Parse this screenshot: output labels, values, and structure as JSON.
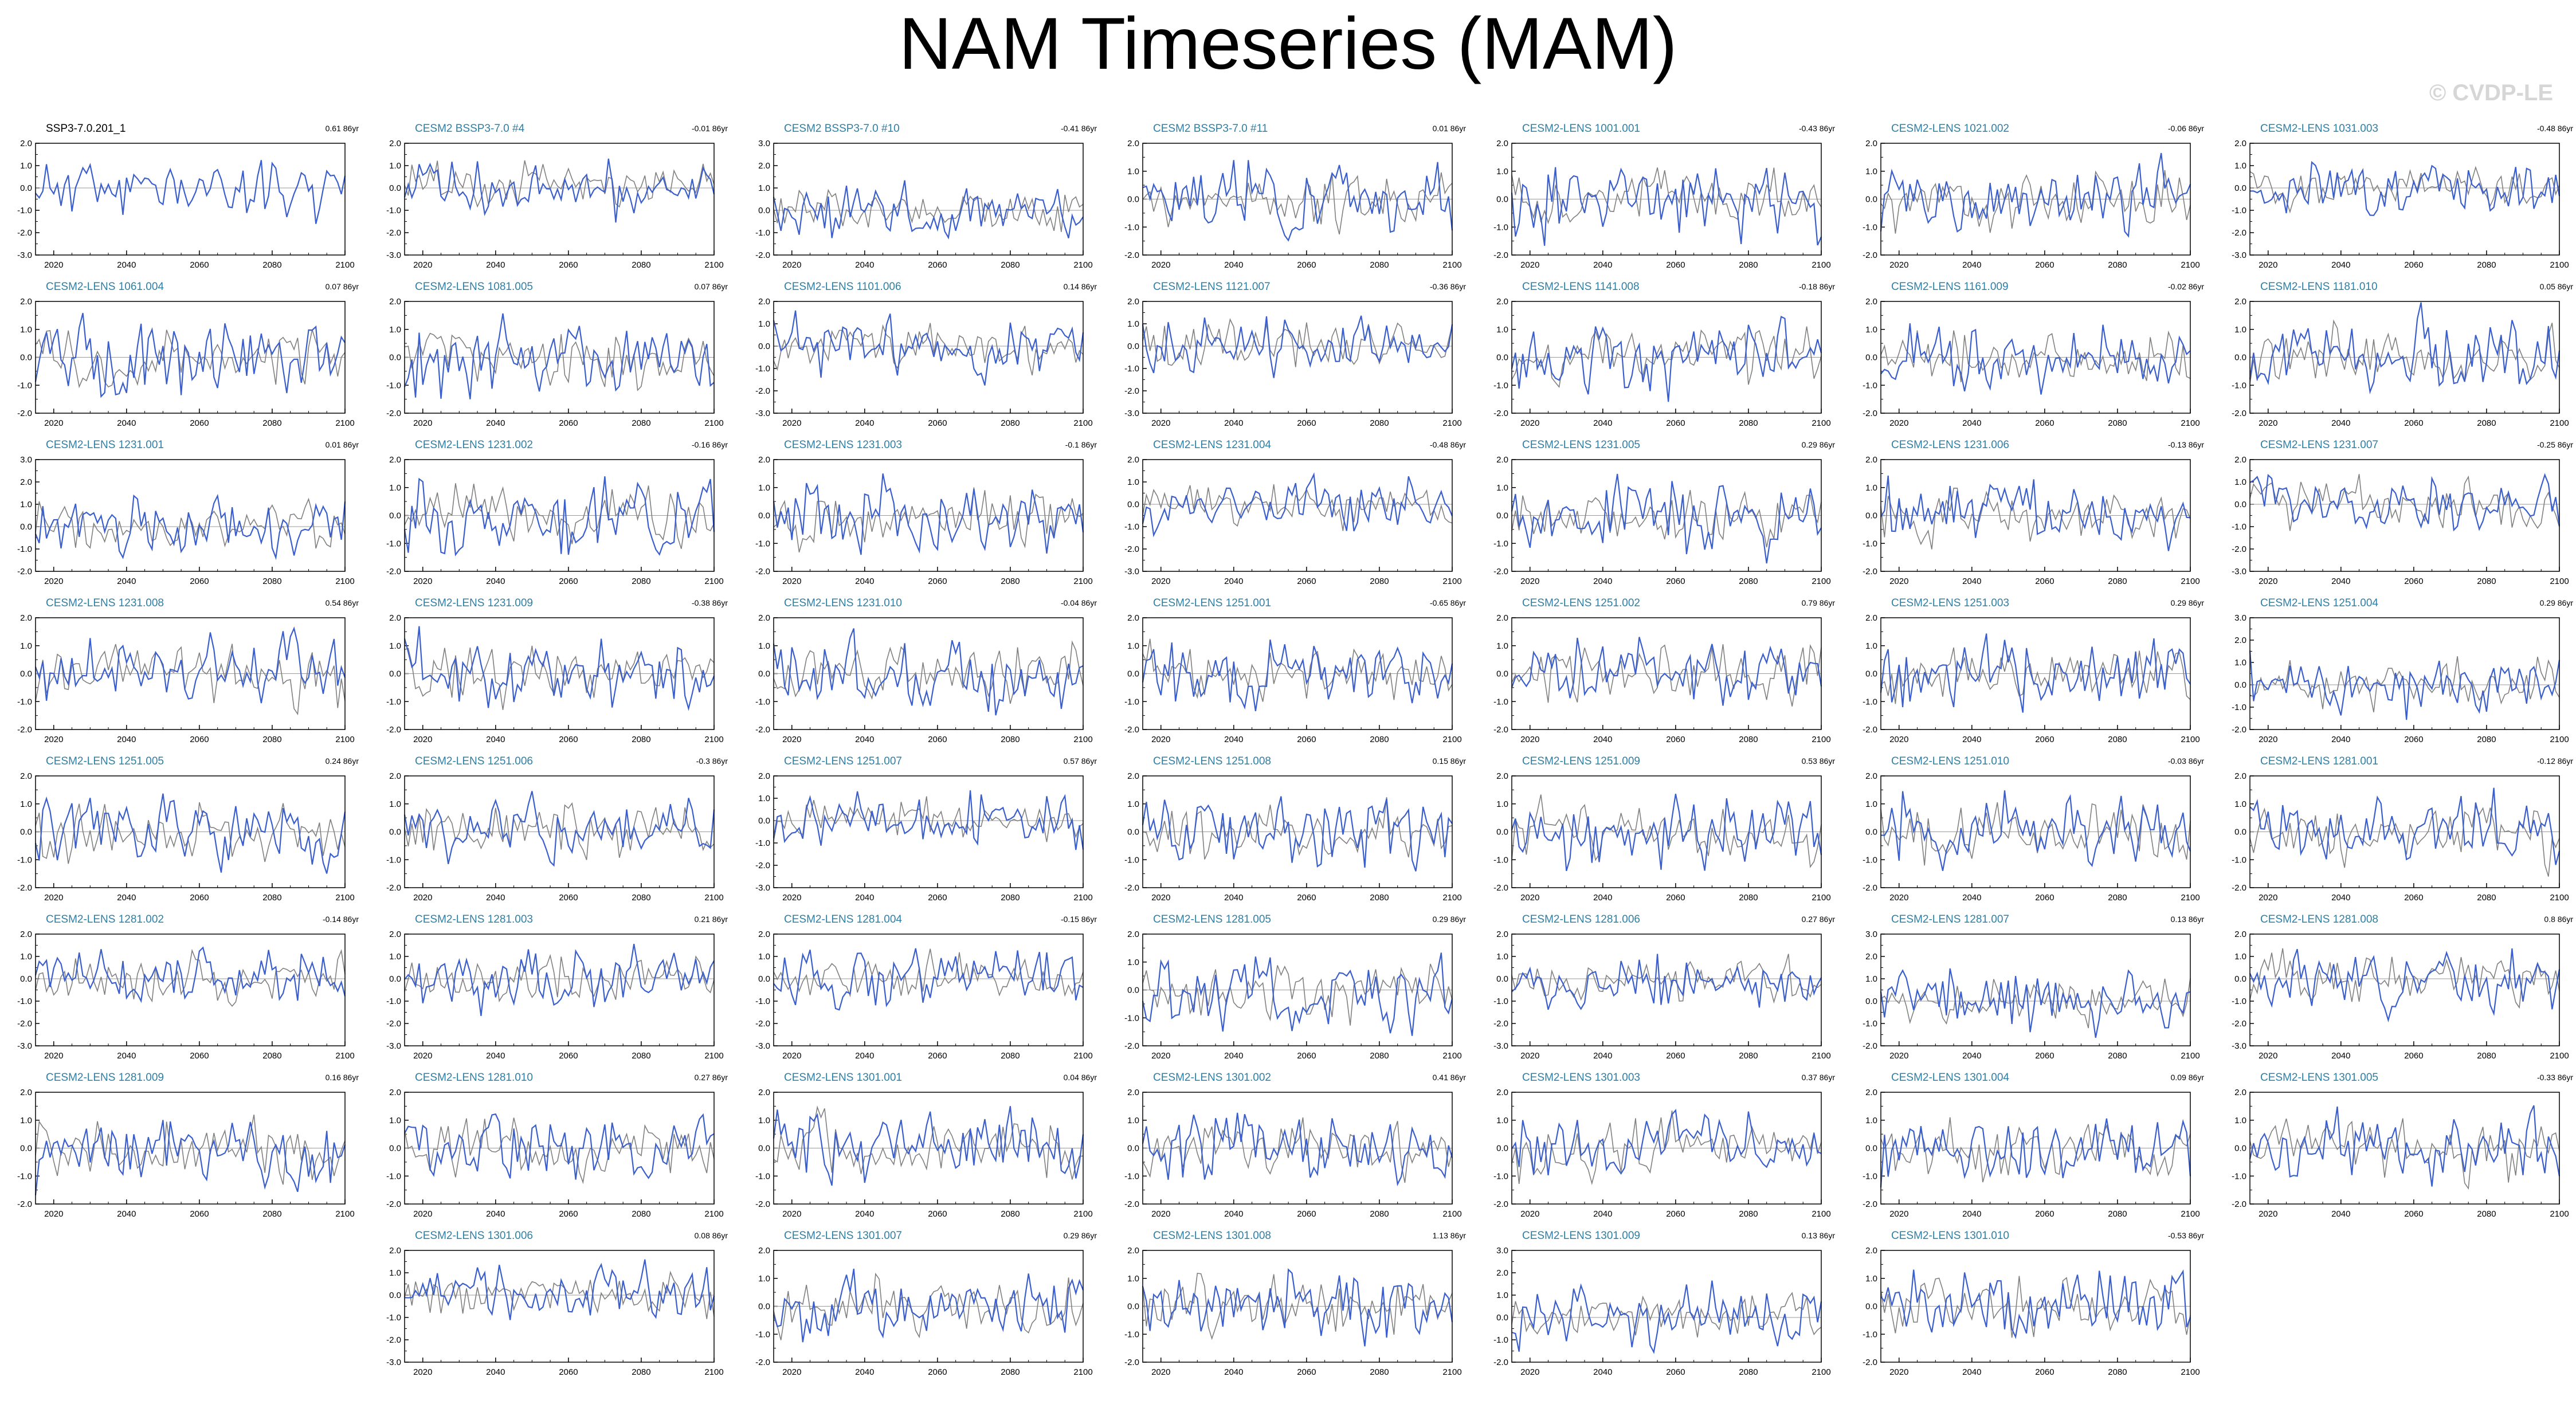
{
  "title": "NAM Timeseries (MAM)",
  "watermark": "© CVDP-LE",
  "colors": {
    "model": "#3a5fcd",
    "observed": "#808080",
    "zero_line": "#999999",
    "title_text": "#2e7fa5"
  },
  "x_ticks": [
    "2020",
    "2040",
    "2060",
    "2080",
    "2100"
  ],
  "chart_data": {
    "type": "line",
    "xlim": [
      2015,
      2100
    ],
    "panels": [
      {
        "name": "SSP3-7.0.201_1",
        "trend": "0.61 86yr",
        "ylim": [
          -3,
          2
        ],
        "yticks": [
          "2.0",
          "1.0",
          "0.0",
          "-1.0",
          "-2.0",
          "-3.0"
        ],
        "seed": 11,
        "base": true
      },
      {
        "name": "CESM2 BSSP3-7.0 #4",
        "trend": "-0.01 86yr",
        "ylim": [
          -3,
          2
        ],
        "yticks": [
          "2.0",
          "1.0",
          "0.0",
          "-1.0",
          "-2.0",
          "-3.0"
        ],
        "seed": 12
      },
      {
        "name": "CESM2 BSSP3-7.0 #10",
        "trend": "-0.41 86yr",
        "ylim": [
          -2,
          3
        ],
        "yticks": [
          "3.0",
          "2.0",
          "1.0",
          "0.0",
          "-1.0",
          "-2.0"
        ],
        "seed": 13
      },
      {
        "name": "CESM2 BSSP3-7.0 #11",
        "trend": "0.01 86yr",
        "ylim": [
          -2,
          2
        ],
        "yticks": [
          "2.0",
          "1.0",
          "0.0",
          "-1.0",
          "-2.0"
        ],
        "seed": 14
      },
      {
        "name": "CESM2-LENS 1001.001",
        "trend": "-0.43 86yr",
        "ylim": [
          -2,
          2
        ],
        "yticks": [
          "2.0",
          "1.0",
          "0.0",
          "-1.0",
          "-2.0"
        ],
        "seed": 15
      },
      {
        "name": "CESM2-LENS 1021.002",
        "trend": "-0.06 86yr",
        "ylim": [
          -2,
          2
        ],
        "yticks": [
          "2.0",
          "1.0",
          "0.0",
          "-1.0",
          "-2.0"
        ],
        "seed": 16
      },
      {
        "name": "CESM2-LENS 1031.003",
        "trend": "-0.48 86yr",
        "ylim": [
          -3,
          2
        ],
        "yticks": [
          "2.0",
          "1.0",
          "0.0",
          "-1.0",
          "-2.0",
          "-3.0"
        ],
        "seed": 17
      },
      {
        "name": "CESM2-LENS 1061.004",
        "trend": "0.07 86yr",
        "ylim": [
          -2,
          2
        ],
        "yticks": [
          "2.0",
          "1.0",
          "0.0",
          "-1.0",
          "-2.0"
        ],
        "seed": 21
      },
      {
        "name": "CESM2-LENS 1081.005",
        "trend": "0.07 86yr",
        "ylim": [
          -2,
          2
        ],
        "yticks": [
          "2.0",
          "1.0",
          "0.0",
          "-1.0",
          "-2.0"
        ],
        "seed": 22
      },
      {
        "name": "CESM2-LENS 1101.006",
        "trend": "0.14 86yr",
        "ylim": [
          -3,
          2
        ],
        "yticks": [
          "2.0",
          "1.0",
          "0.0",
          "-1.0",
          "-2.0",
          "-3.0"
        ],
        "seed": 23
      },
      {
        "name": "CESM2-LENS 1121.007",
        "trend": "-0.36 86yr",
        "ylim": [
          -3,
          2
        ],
        "yticks": [
          "2.0",
          "1.0",
          "0.0",
          "-1.0",
          "-2.0",
          "-3.0"
        ],
        "seed": 24
      },
      {
        "name": "CESM2-LENS 1141.008",
        "trend": "-0.18 86yr",
        "ylim": [
          -2,
          2
        ],
        "yticks": [
          "2.0",
          "1.0",
          "0.0",
          "-1.0",
          "-2.0"
        ],
        "seed": 25
      },
      {
        "name": "CESM2-LENS 1161.009",
        "trend": "-0.02 86yr",
        "ylim": [
          -2,
          2
        ],
        "yticks": [
          "2.0",
          "1.0",
          "0.0",
          "-1.0",
          "-2.0"
        ],
        "seed": 26
      },
      {
        "name": "CESM2-LENS 1181.010",
        "trend": "0.05 86yr",
        "ylim": [
          -2,
          2
        ],
        "yticks": [
          "2.0",
          "1.0",
          "0.0",
          "-1.0",
          "-2.0"
        ],
        "seed": 27
      },
      {
        "name": "CESM2-LENS 1231.001",
        "trend": "0.01 86yr",
        "ylim": [
          -2,
          3
        ],
        "yticks": [
          "3.0",
          "2.0",
          "1.0",
          "0.0",
          "-1.0",
          "-2.0"
        ],
        "seed": 31
      },
      {
        "name": "CESM2-LENS 1231.002",
        "trend": "-0.16 86yr",
        "ylim": [
          -2,
          2
        ],
        "yticks": [
          "2.0",
          "1.0",
          "0.0",
          "-1.0",
          "-2.0"
        ],
        "seed": 32
      },
      {
        "name": "CESM2-LENS 1231.003",
        "trend": "-0.1 86yr",
        "ylim": [
          -2,
          2
        ],
        "yticks": [
          "2.0",
          "1.0",
          "0.0",
          "-1.0",
          "-2.0"
        ],
        "seed": 33
      },
      {
        "name": "CESM2-LENS 1231.004",
        "trend": "-0.48 86yr",
        "ylim": [
          -3,
          2
        ],
        "yticks": [
          "2.0",
          "1.0",
          "0.0",
          "-1.0",
          "-2.0",
          "-3.0"
        ],
        "seed": 34
      },
      {
        "name": "CESM2-LENS 1231.005",
        "trend": "0.29 86yr",
        "ylim": [
          -2,
          2
        ],
        "yticks": [
          "2.0",
          "1.0",
          "0.0",
          "-1.0",
          "-2.0"
        ],
        "seed": 35
      },
      {
        "name": "CESM2-LENS 1231.006",
        "trend": "-0.13 86yr",
        "ylim": [
          -2,
          2
        ],
        "yticks": [
          "2.0",
          "1.0",
          "0.0",
          "-1.0",
          "-2.0"
        ],
        "seed": 36
      },
      {
        "name": "CESM2-LENS 1231.007",
        "trend": "-0.25 86yr",
        "ylim": [
          -3,
          2
        ],
        "yticks": [
          "2.0",
          "1.0",
          "0.0",
          "-1.0",
          "-2.0",
          "-3.0"
        ],
        "seed": 37
      },
      {
        "name": "CESM2-LENS 1231.008",
        "trend": "0.54 86yr",
        "ylim": [
          -2,
          2
        ],
        "yticks": [
          "2.0",
          "1.0",
          "0.0",
          "-1.0",
          "-2.0"
        ],
        "seed": 41
      },
      {
        "name": "CESM2-LENS 1231.009",
        "trend": "-0.38 86yr",
        "ylim": [
          -2,
          2
        ],
        "yticks": [
          "2.0",
          "1.0",
          "0.0",
          "-1.0",
          "-2.0"
        ],
        "seed": 42
      },
      {
        "name": "CESM2-LENS 1231.010",
        "trend": "-0.04 86yr",
        "ylim": [
          -2,
          2
        ],
        "yticks": [
          "2.0",
          "1.0",
          "0.0",
          "-1.0",
          "-2.0"
        ],
        "seed": 43
      },
      {
        "name": "CESM2-LENS 1251.001",
        "trend": "-0.65 86yr",
        "ylim": [
          -2,
          2
        ],
        "yticks": [
          "2.0",
          "1.0",
          "0.0",
          "-1.0",
          "-2.0"
        ],
        "seed": 44
      },
      {
        "name": "CESM2-LENS 1251.002",
        "trend": "0.79 86yr",
        "ylim": [
          -2,
          2
        ],
        "yticks": [
          "2.0",
          "1.0",
          "0.0",
          "-1.0",
          "-2.0"
        ],
        "seed": 45
      },
      {
        "name": "CESM2-LENS 1251.003",
        "trend": "0.29 86yr",
        "ylim": [
          -2,
          2
        ],
        "yticks": [
          "2.0",
          "1.0",
          "0.0",
          "-1.0",
          "-2.0"
        ],
        "seed": 46
      },
      {
        "name": "CESM2-LENS 1251.004",
        "trend": "0.29 86yr",
        "ylim": [
          -2,
          3
        ],
        "yticks": [
          "3.0",
          "2.0",
          "1.0",
          "0.0",
          "-1.0",
          "-2.0"
        ],
        "seed": 47
      },
      {
        "name": "CESM2-LENS 1251.005",
        "trend": "0.24 86yr",
        "ylim": [
          -2,
          2
        ],
        "yticks": [
          "2.0",
          "1.0",
          "0.0",
          "-1.0",
          "-2.0"
        ],
        "seed": 51
      },
      {
        "name": "CESM2-LENS 1251.006",
        "trend": "-0.3 86yr",
        "ylim": [
          -2,
          2
        ],
        "yticks": [
          "2.0",
          "1.0",
          "0.0",
          "-1.0",
          "-2.0"
        ],
        "seed": 52
      },
      {
        "name": "CESM2-LENS 1251.007",
        "trend": "0.57 86yr",
        "ylim": [
          -3,
          2
        ],
        "yticks": [
          "2.0",
          "1.0",
          "0.0",
          "-1.0",
          "-2.0",
          "-3.0"
        ],
        "seed": 53
      },
      {
        "name": "CESM2-LENS 1251.008",
        "trend": "0.15 86yr",
        "ylim": [
          -2,
          2
        ],
        "yticks": [
          "2.0",
          "1.0",
          "0.0",
          "-1.0",
          "-2.0"
        ],
        "seed": 54
      },
      {
        "name": "CESM2-LENS 1251.009",
        "trend": "0.53 86yr",
        "ylim": [
          -2,
          2
        ],
        "yticks": [
          "2.0",
          "1.0",
          "0.0",
          "-1.0",
          "-2.0"
        ],
        "seed": 55
      },
      {
        "name": "CESM2-LENS 1251.010",
        "trend": "-0.03 86yr",
        "ylim": [
          -2,
          2
        ],
        "yticks": [
          "2.0",
          "1.0",
          "0.0",
          "-1.0",
          "-2.0"
        ],
        "seed": 56
      },
      {
        "name": "CESM2-LENS 1281.001",
        "trend": "-0.12 86yr",
        "ylim": [
          -2,
          2
        ],
        "yticks": [
          "2.0",
          "1.0",
          "0.0",
          "-1.0",
          "-2.0"
        ],
        "seed": 57
      },
      {
        "name": "CESM2-LENS 1281.002",
        "trend": "-0.14 86yr",
        "ylim": [
          -3,
          2
        ],
        "yticks": [
          "2.0",
          "1.0",
          "0.0",
          "-1.0",
          "-2.0",
          "-3.0"
        ],
        "seed": 61
      },
      {
        "name": "CESM2-LENS 1281.003",
        "trend": "0.21 86yr",
        "ylim": [
          -3,
          2
        ],
        "yticks": [
          "2.0",
          "1.0",
          "0.0",
          "-1.0",
          "-2.0",
          "-3.0"
        ],
        "seed": 62
      },
      {
        "name": "CESM2-LENS 1281.004",
        "trend": "-0.15 86yr",
        "ylim": [
          -3,
          2
        ],
        "yticks": [
          "2.0",
          "1.0",
          "0.0",
          "-1.0",
          "-2.0",
          "-3.0"
        ],
        "seed": 63
      },
      {
        "name": "CESM2-LENS 1281.005",
        "trend": "0.29 86yr",
        "ylim": [
          -2,
          2
        ],
        "yticks": [
          "2.0",
          "1.0",
          "0.0",
          "-1.0",
          "-2.0"
        ],
        "seed": 64
      },
      {
        "name": "CESM2-LENS 1281.006",
        "trend": "0.27 86yr",
        "ylim": [
          -3,
          2
        ],
        "yticks": [
          "2.0",
          "1.0",
          "0.0",
          "-1.0",
          "-2.0",
          "-3.0"
        ],
        "seed": 65
      },
      {
        "name": "CESM2-LENS 1281.007",
        "trend": "0.13 86yr",
        "ylim": [
          -2,
          3
        ],
        "yticks": [
          "3.0",
          "2.0",
          "1.0",
          "0.0",
          "-1.0",
          "-2.0"
        ],
        "seed": 66
      },
      {
        "name": "CESM2-LENS 1281.008",
        "trend": "0.8 86yr",
        "ylim": [
          -3,
          2
        ],
        "yticks": [
          "2.0",
          "1.0",
          "0.0",
          "-1.0",
          "-2.0",
          "-3.0"
        ],
        "seed": 67
      },
      {
        "name": "CESM2-LENS 1281.009",
        "trend": "0.16 86yr",
        "ylim": [
          -2,
          2
        ],
        "yticks": [
          "2.0",
          "1.0",
          "0.0",
          "-1.0",
          "-2.0"
        ],
        "seed": 71
      },
      {
        "name": "CESM2-LENS 1281.010",
        "trend": "0.27 86yr",
        "ylim": [
          -2,
          2
        ],
        "yticks": [
          "2.0",
          "1.0",
          "0.0",
          "-1.0",
          "-2.0"
        ],
        "seed": 72
      },
      {
        "name": "CESM2-LENS 1301.001",
        "trend": "0.04 86yr",
        "ylim": [
          -2,
          2
        ],
        "yticks": [
          "2.0",
          "1.0",
          "0.0",
          "-1.0",
          "-2.0"
        ],
        "seed": 73
      },
      {
        "name": "CESM2-LENS 1301.002",
        "trend": "0.41 86yr",
        "ylim": [
          -2,
          2
        ],
        "yticks": [
          "2.0",
          "1.0",
          "0.0",
          "-1.0",
          "-2.0"
        ],
        "seed": 74
      },
      {
        "name": "CESM2-LENS 1301.003",
        "trend": "0.37 86yr",
        "ylim": [
          -2,
          2
        ],
        "yticks": [
          "2.0",
          "1.0",
          "0.0",
          "-1.0",
          "-2.0"
        ],
        "seed": 75
      },
      {
        "name": "CESM2-LENS 1301.004",
        "trend": "0.09 86yr",
        "ylim": [
          -2,
          2
        ],
        "yticks": [
          "2.0",
          "1.0",
          "0.0",
          "-1.0",
          "-2.0"
        ],
        "seed": 76
      },
      {
        "name": "CESM2-LENS 1301.005",
        "trend": "-0.33 86yr",
        "ylim": [
          -2,
          2
        ],
        "yticks": [
          "2.0",
          "1.0",
          "0.0",
          "-1.0",
          "-2.0"
        ],
        "seed": 77
      },
      {
        "name": "CESM2-LENS 1301.006",
        "trend": "0.08 86yr",
        "ylim": [
          -3,
          2
        ],
        "yticks": [
          "2.0",
          "1.0",
          "0.0",
          "-1.0",
          "-2.0",
          "-3.0"
        ],
        "seed": 82
      },
      {
        "name": "CESM2-LENS 1301.007",
        "trend": "0.29 86yr",
        "ylim": [
          -2,
          2
        ],
        "yticks": [
          "2.0",
          "1.0",
          "0.0",
          "-1.0",
          "-2.0"
        ],
        "seed": 83
      },
      {
        "name": "CESM2-LENS 1301.008",
        "trend": "1.13 86yr",
        "ylim": [
          -2,
          2
        ],
        "yticks": [
          "2.0",
          "1.0",
          "0.0",
          "-1.0",
          "-2.0"
        ],
        "seed": 84
      },
      {
        "name": "CESM2-LENS 1301.009",
        "trend": "0.13 86yr",
        "ylim": [
          -2,
          3
        ],
        "yticks": [
          "3.0",
          "2.0",
          "1.0",
          "0.0",
          "-1.0",
          "-2.0"
        ],
        "seed": 85
      },
      {
        "name": "CESM2-LENS 1301.010",
        "trend": "-0.53 86yr",
        "ylim": [
          -2,
          2
        ],
        "yticks": [
          "2.0",
          "1.0",
          "0.0",
          "-1.0",
          "-2.0"
        ],
        "seed": 86
      }
    ]
  }
}
